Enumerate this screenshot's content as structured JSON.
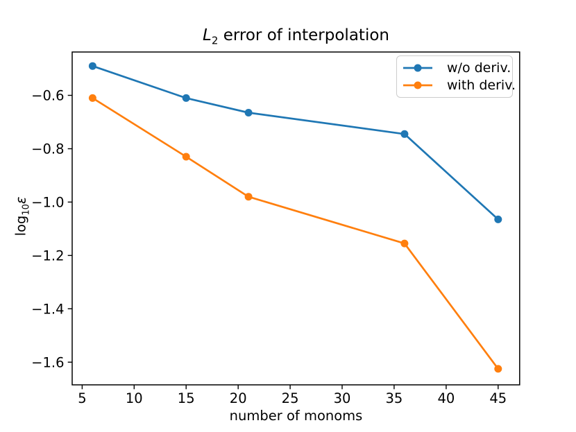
{
  "figure": {
    "title": {
      "italic": "L",
      "sub": "2",
      "rest": " error of interpolation"
    },
    "xlabel": "number of monoms",
    "ylabel": {
      "main": "log",
      "sub": "10",
      "italic": "ε"
    }
  },
  "chart_data": {
    "type": "line",
    "title": "L2 error of interpolation",
    "xlabel": "number of monoms",
    "ylabel": "log10 ε",
    "x": [
      6,
      15,
      21,
      36,
      45
    ],
    "series": [
      {
        "name": "w/o deriv.",
        "color": "#1f77b4",
        "values": [
          -0.49,
          -0.61,
          -0.665,
          -0.745,
          -1.065
        ]
      },
      {
        "name": "with deriv.",
        "color": "#ff7f0e",
        "values": [
          -0.61,
          -0.83,
          -0.98,
          -1.155,
          -1.625
        ]
      }
    ],
    "xlim": [
      4.04,
      47.07
    ],
    "ylim": [
      -1.685,
      -0.4375
    ],
    "x_ticks": {
      "values": [
        5,
        10,
        15,
        20,
        25,
        30,
        35,
        40,
        45
      ],
      "labels": [
        "5",
        "10",
        "15",
        "20",
        "25",
        "30",
        "35",
        "40",
        "45"
      ]
    },
    "y_ticks": {
      "values": [
        -0.6,
        -0.8,
        -1.0,
        -1.2,
        -1.4,
        -1.6
      ],
      "labels": [
        "−0.6",
        "−0.8",
        "−1.0",
        "−1.2",
        "−1.4",
        "−1.6"
      ]
    },
    "grid": false,
    "marker": "circle",
    "legend": {
      "position": "upper right",
      "labels": [
        "w/o deriv.",
        "with deriv."
      ]
    },
    "axis_color": "#000000",
    "legend_border_color": "#cccccc"
  }
}
